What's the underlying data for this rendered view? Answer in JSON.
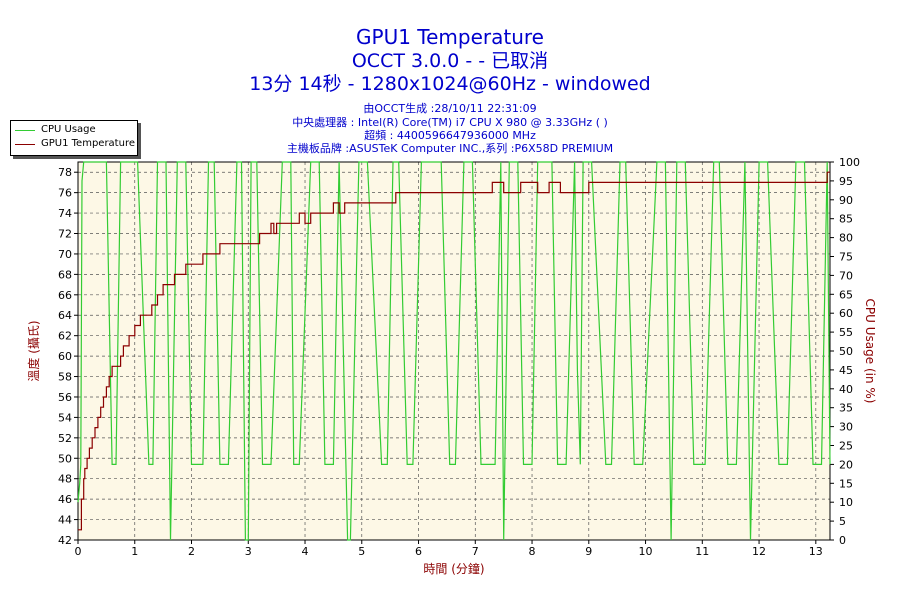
{
  "header": {
    "title": "GPU1 Temperature",
    "subtitle1": "OCCT 3.0.0 -  - 已取消",
    "subtitle2": "13分 14秒 - 1280x1024@60Hz - windowed",
    "info": [
      "由OCCT生成 :28/10/11 22:31:09",
      "中央處理器 : Intel(R) Core(TM) i7 CPU X 980 @ 3.33GHz (        )",
      "超頻 : 4400596647936000 MHz",
      "主機板品牌 :ASUSTeK Computer INC.,系列 :P6X58D PREMIUM"
    ]
  },
  "legend": {
    "cpu_label": "CPU Usage",
    "gpu_label": "GPU1 Temperature"
  },
  "colors": {
    "cpu": "#33cc33",
    "gpu": "#8b0000",
    "plot_bg": "#fdf8e6",
    "grid": "#555555",
    "title": "#0000cc",
    "axis_label": "#8b0000"
  },
  "chart_data": {
    "type": "line",
    "title": "GPU1 Temperature",
    "xlabel": "時間 (分鐘)",
    "ylabel_left": "溫度 (攝氏)",
    "ylabel_right": "CPU Usage (in %)",
    "xlim": [
      0,
      13.25
    ],
    "ylim_left": [
      42,
      79
    ],
    "ylim_right": [
      0,
      100
    ],
    "x_ticks": [
      "0",
      "1",
      "2",
      "3",
      "4",
      "5",
      "6",
      "7",
      "8",
      "9",
      "10",
      "11",
      "12",
      "13"
    ],
    "y_left_ticks": [
      "42",
      "44",
      "46",
      "48",
      "50",
      "52",
      "54",
      "56",
      "58",
      "60",
      "62",
      "64",
      "66",
      "68",
      "70",
      "72",
      "74",
      "76",
      "78"
    ],
    "y_right_ticks": [
      "0",
      "5",
      "10",
      "15",
      "20",
      "25",
      "30",
      "35",
      "40",
      "45",
      "50",
      "55",
      "60",
      "65",
      "70",
      "75",
      "80",
      "85",
      "90",
      "95",
      "100"
    ],
    "grid": true,
    "legend_position": "top-left",
    "series": [
      {
        "name": "GPU1 Temperature",
        "axis": "left",
        "x": [
          0,
          0.05,
          0.06,
          0.1,
          0.12,
          0.16,
          0.2,
          0.25,
          0.3,
          0.35,
          0.4,
          0.45,
          0.5,
          0.55,
          0.6,
          0.65,
          0.7,
          0.75,
          0.8,
          0.9,
          1.0,
          1.1,
          1.2,
          1.3,
          1.4,
          1.5,
          1.6,
          1.7,
          1.8,
          1.9,
          2.0,
          2.2,
          2.4,
          2.5,
          2.6,
          2.7,
          2.8,
          3.0,
          3.2,
          3.25,
          3.4,
          3.45,
          3.5,
          3.6,
          3.8,
          3.9,
          4.0,
          4.1,
          4.2,
          4.4,
          4.5,
          4.6,
          4.7,
          4.75,
          5.0,
          5.05,
          5.5,
          5.6,
          5.8,
          6.0,
          6.5,
          7.0,
          7.3,
          7.5,
          7.8,
          8.1,
          8.3,
          8.5,
          8.8,
          9.0,
          9.5,
          10.0,
          11.0,
          12.0,
          13.0,
          13.1,
          13.2,
          13.25
        ],
        "values": [
          43,
          43,
          46,
          48,
          49,
          50,
          51,
          52,
          53,
          54,
          55,
          56,
          57,
          58,
          59,
          59,
          59,
          60,
          61,
          62,
          63,
          64,
          64,
          65,
          66,
          67,
          67,
          68,
          68,
          69,
          69,
          70,
          70,
          71,
          71,
          71,
          71,
          71,
          72,
          72,
          73,
          72,
          73,
          73,
          73,
          74,
          73,
          74,
          74,
          74,
          75,
          74,
          75,
          75,
          75,
          75,
          75,
          76,
          76,
          76,
          76,
          76,
          77,
          76,
          77,
          76,
          77,
          76,
          76,
          77,
          77,
          77,
          77,
          77,
          77,
          77,
          78,
          78
        ]
      },
      {
        "name": "CPU Usage",
        "axis": "right",
        "x": [
          0,
          0.03,
          0.05,
          0.07,
          0.1,
          0.5,
          0.6,
          0.67,
          0.75,
          0.82,
          1.05,
          1.25,
          1.32,
          1.4,
          1.55,
          1.63,
          1.75,
          1.9,
          2.0,
          2.2,
          2.3,
          2.4,
          2.5,
          2.65,
          2.8,
          2.88,
          2.95,
          3.0,
          3.05,
          3.15,
          3.25,
          3.4,
          3.6,
          3.75,
          3.8,
          3.9,
          4.1,
          4.25,
          4.35,
          4.5,
          4.6,
          4.75,
          4.8,
          4.95,
          5.1,
          5.35,
          5.45,
          5.55,
          5.65,
          5.8,
          5.9,
          6.05,
          6.4,
          6.55,
          6.65,
          6.8,
          6.95,
          7.1,
          7.35,
          7.45,
          7.5,
          7.6,
          7.75,
          7.85,
          8.0,
          8.1,
          8.35,
          8.45,
          8.6,
          8.75,
          8.8,
          8.85,
          8.9,
          9.05,
          9.3,
          9.4,
          9.55,
          9.65,
          9.8,
          9.95,
          10.2,
          10.35,
          10.45,
          10.55,
          10.7,
          10.85,
          11.05,
          11.2,
          11.3,
          11.45,
          11.6,
          11.75,
          11.85,
          12.0,
          12.15,
          12.35,
          12.5,
          12.65,
          12.8,
          12.95,
          13.1,
          13.2,
          13.25
        ],
        "values": [
          10,
          15,
          20,
          95,
          100,
          100,
          20,
          20,
          100,
          100,
          100,
          20,
          20,
          100,
          100,
          0,
          100,
          100,
          20,
          20,
          100,
          100,
          20,
          20,
          100,
          100,
          0,
          0,
          100,
          100,
          20,
          20,
          100,
          100,
          20,
          20,
          100,
          100,
          20,
          20,
          100,
          0,
          0,
          100,
          100,
          20,
          20,
          100,
          100,
          20,
          20,
          100,
          100,
          20,
          20,
          100,
          100,
          20,
          20,
          100,
          0,
          100,
          100,
          20,
          20,
          100,
          100,
          20,
          20,
          100,
          45,
          20,
          100,
          100,
          20,
          20,
          100,
          100,
          20,
          20,
          100,
          100,
          0,
          100,
          100,
          20,
          20,
          100,
          100,
          20,
          20,
          100,
          0,
          100,
          100,
          20,
          20,
          100,
          100,
          20,
          20,
          100,
          20
        ]
      }
    ]
  }
}
